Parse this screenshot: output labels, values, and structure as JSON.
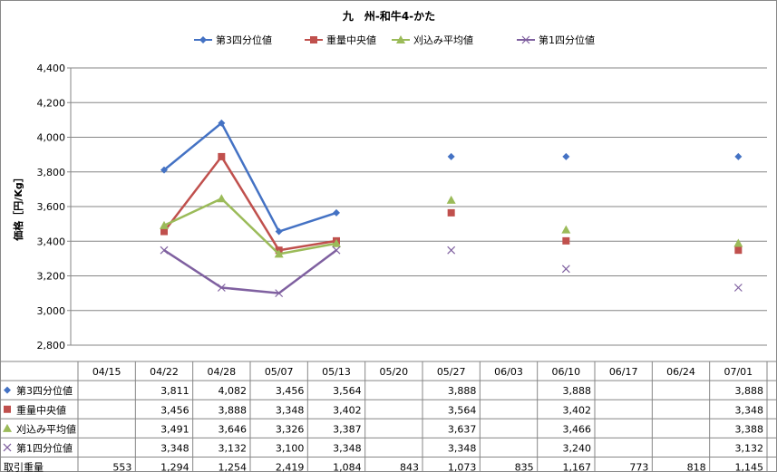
{
  "chart_data": {
    "type": "line",
    "title": "九　州-和牛4-かた",
    "ylabel": "価格［円/Kg］",
    "ylim": [
      2800,
      4400
    ],
    "ytick_step": 200,
    "ytick_labels": [
      "2,800",
      "3,000",
      "3,200",
      "3,400",
      "3,600",
      "3,800",
      "4,000",
      "4,200",
      "4,400"
    ],
    "categories": [
      "04/15",
      "04/22",
      "04/28",
      "05/07",
      "05/13",
      "05/20",
      "05/27",
      "06/03",
      "06/10",
      "06/17",
      "06/24",
      "07/01"
    ],
    "grid": true,
    "legend": "top",
    "series": [
      {
        "name": "第3四分位値",
        "color": "#4472C4",
        "marker": "diamond",
        "values": [
          null,
          3811,
          4082,
          3456,
          3564,
          null,
          3888,
          null,
          3888,
          null,
          null,
          3888
        ],
        "labels": [
          "",
          "3,811",
          "4,082",
          "3,456",
          "3,564",
          "",
          "3,888",
          "",
          "3,888",
          "",
          "",
          "3,888"
        ]
      },
      {
        "name": "重量中央値",
        "color": "#C0504D",
        "marker": "square",
        "values": [
          null,
          3456,
          3888,
          3348,
          3402,
          null,
          3564,
          null,
          3402,
          null,
          null,
          3348
        ],
        "labels": [
          "",
          "3,456",
          "3,888",
          "3,348",
          "3,402",
          "",
          "3,564",
          "",
          "3,402",
          "",
          "",
          "3,348"
        ]
      },
      {
        "name": "刈込み平均値",
        "color": "#9BBB59",
        "marker": "triangle",
        "values": [
          null,
          3491,
          3646,
          3326,
          3387,
          null,
          3637,
          null,
          3466,
          null,
          null,
          3388
        ],
        "labels": [
          "",
          "3,491",
          "3,646",
          "3,326",
          "3,387",
          "",
          "3,637",
          "",
          "3,466",
          "",
          "",
          "3,388"
        ]
      },
      {
        "name": "第1四分位値",
        "color": "#7F60A0",
        "marker": "x",
        "values": [
          null,
          3348,
          3132,
          3100,
          3348,
          null,
          3348,
          null,
          3240,
          null,
          null,
          3132
        ],
        "labels": [
          "",
          "3,348",
          "3,132",
          "3,100",
          "3,348",
          "",
          "3,348",
          "",
          "3,240",
          "",
          "",
          "3,132"
        ]
      }
    ],
    "volume_row": {
      "name": "取引重量",
      "values": [
        553,
        1294,
        1254,
        2419,
        1084,
        843,
        1073,
        835,
        1167,
        773,
        818,
        1145
      ],
      "labels": [
        "553",
        "1,294",
        "1,254",
        "2,419",
        "1,084",
        "843",
        "1,073",
        "835",
        "1,167",
        "773",
        "818",
        "1,145"
      ]
    }
  }
}
